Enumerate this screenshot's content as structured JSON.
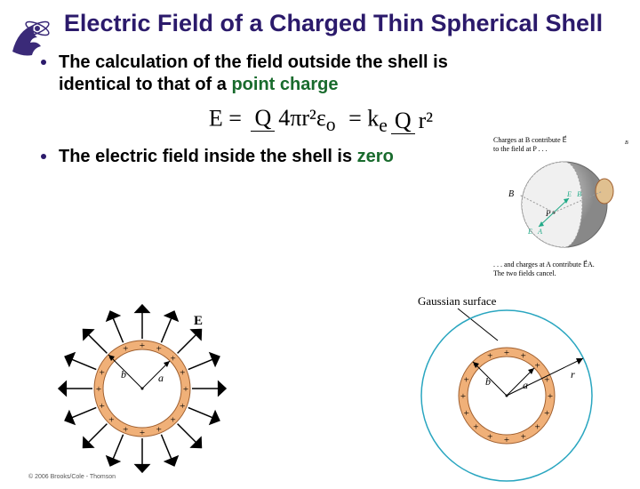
{
  "title": "Electric Field of a Charged Thin Spherical Shell",
  "bullets": {
    "b1_pre": "The calculation of the field outside the shell is identical to that of a ",
    "b1_hl": "point charge",
    "b2_pre": "The electric field inside the shell is ",
    "b2_hl": "zero"
  },
  "equation": {
    "E": "E",
    "eq1": " = ",
    "f1n": "Q",
    "f1d": "4πr²ε",
    "sub_o": "o",
    "eq2": " = k",
    "sub_e": "e",
    "f2n": "Q",
    "f2d": "r²"
  },
  "sphere3d": {
    "annot_top": "Charges at B contribute E⃗",
    "annot_top2": "to the field at P . . .",
    "B": "B",
    "P": "P",
    "EA": "E⃗A",
    "EB": "E⃗B",
    "annot_bot1": ". . . and charges at A contribute E⃗A.",
    "annot_bot2": "The two fields cancel.",
    "sub_B": "B"
  },
  "diag_left": {
    "E": "E⃗",
    "b": "b",
    "a": "a"
  },
  "diag_right": {
    "label": "Gaussian surface",
    "b": "b",
    "a": "a",
    "r": "r"
  },
  "copyright": "© 2006 Brooks/Cole - Thomson",
  "colors": {
    "shell_fill": "#f0b078",
    "shell_stroke": "#a06030",
    "arrow": "#000",
    "gauss": "#2aa6c0",
    "sphere_ball": "#b8b8b8",
    "sphere_dark": "#888"
  }
}
